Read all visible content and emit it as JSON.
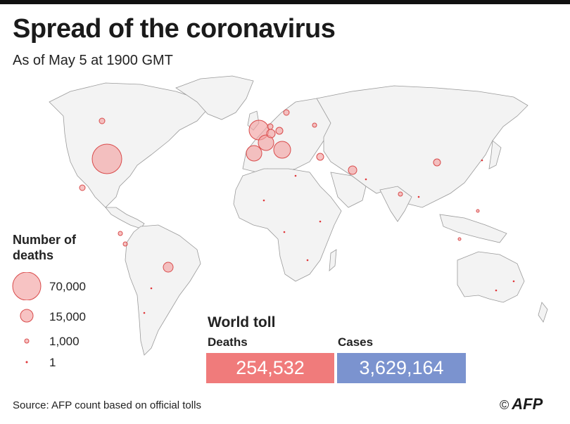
{
  "header": {
    "title": "Spread of the coronavirus",
    "subtitle": "As of May 5 at 1900 GMT"
  },
  "legend": {
    "title": "Number of deaths",
    "items": [
      {
        "label": "70,000",
        "value": 70000
      },
      {
        "label": "15,000",
        "value": 15000
      },
      {
        "label": "1,000",
        "value": 1000
      },
      {
        "label": "1",
        "value": 1
      }
    ]
  },
  "world_toll": {
    "title": "World toll",
    "deaths_label": "Deaths",
    "deaths_value": "254,532",
    "cases_label": "Cases",
    "cases_value": "3,629,164"
  },
  "colors": {
    "bubble_fill": "#f2a3a3",
    "bubble_stroke": "#d94b4b",
    "deaths_box": "#f07b7b",
    "cases_box": "#7b93cf"
  },
  "footer": {
    "source": "Source: AFP count based on official tolls",
    "copyright": "©",
    "brand": "AFP"
  }
}
